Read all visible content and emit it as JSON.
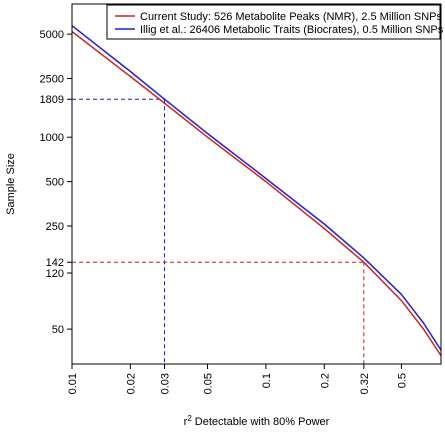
{
  "chart_data": {
    "type": "line",
    "xscale": "log",
    "yscale": "log",
    "xlim": [
      0.01,
      0.8
    ],
    "ylim": [
      29,
      8000
    ],
    "grid": false,
    "legend_position": "top-right",
    "xlabel": "Detectable with 80% Power",
    "xlabel_prefix": "r",
    "xlabel_superscript": "2",
    "ylabel": "Sample Size",
    "xticks": [
      {
        "value": 0.01,
        "label": "0.01",
        "color": "#000000"
      },
      {
        "value": 0.02,
        "label": "0.02",
        "color": "#000000"
      },
      {
        "value": 0.03,
        "label": "0.03",
        "color": "#1f1fd1"
      },
      {
        "value": 0.05,
        "label": "0.05",
        "color": "#000000"
      },
      {
        "value": 0.1,
        "label": "0.1",
        "color": "#000000"
      },
      {
        "value": 0.2,
        "label": "0.2",
        "color": "#000000"
      },
      {
        "value": 0.32,
        "label": "0.32",
        "color": "#d11f1f"
      },
      {
        "value": 0.5,
        "label": "0.5",
        "color": "#000000"
      }
    ],
    "yticks": [
      {
        "value": 50,
        "label": "50",
        "color": "#000000"
      },
      {
        "value": 120,
        "label": "120",
        "color": "#000000"
      },
      {
        "value": 142,
        "label": "142",
        "color": "#d11f1f"
      },
      {
        "value": 250,
        "label": "250",
        "color": "#000000"
      },
      {
        "value": 500,
        "label": "500",
        "color": "#000000"
      },
      {
        "value": 1000,
        "label": "1000",
        "color": "#000000"
      },
      {
        "value": 1809,
        "label": "1809",
        "color": "#1f1fd1"
      },
      {
        "value": 2500,
        "label": "2500",
        "color": "#000000"
      },
      {
        "value": 5000,
        "label": "5000",
        "color": "#000000"
      }
    ],
    "series": [
      {
        "name": "Current Study: 526 Metabolite Peaks (NMR), 2.5 Million SNPs",
        "color": "#cc2222",
        "x": [
          0.01,
          0.02,
          0.03,
          0.05,
          0.1,
          0.2,
          0.32,
          0.5,
          0.65,
          0.8
        ],
        "y": [
          5200,
          2580,
          1700,
          1000,
          500,
          240,
          142,
          78,
          50,
          33
        ]
      },
      {
        "name": "Illig et al.: 26406 Metabolic Traits (Biocrates), 0.5 Million SNPs",
        "color": "#2222cc",
        "x": [
          0.01,
          0.02,
          0.03,
          0.05,
          0.1,
          0.2,
          0.32,
          0.5,
          0.65,
          0.8
        ],
        "y": [
          5700,
          2790,
          1809,
          1060,
          525,
          258,
          152,
          86,
          55,
          36
        ]
      }
    ],
    "reference_lines": [
      {
        "x": 0.03,
        "y": 1809,
        "color": "#1f1fd1"
      },
      {
        "x": 0.32,
        "y": 142,
        "color": "#d11f1f"
      }
    ]
  }
}
